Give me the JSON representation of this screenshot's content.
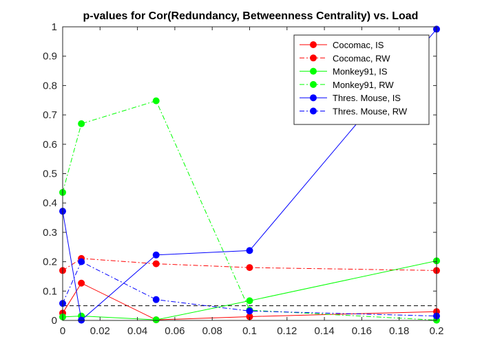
{
  "chart_data": {
    "type": "line",
    "title": "p-values for Cor(Redundancy, Betweenness Centrality) vs. Load",
    "xlabel": "",
    "ylabel": "",
    "xlim": [
      0,
      0.2
    ],
    "ylim": [
      0,
      1
    ],
    "xticks": [
      "0",
      "0.02",
      "0.04",
      "0.06",
      "0.08",
      "0.1",
      "0.12",
      "0.14",
      "0.16",
      "0.18",
      "0.2"
    ],
    "yticks": [
      "0",
      "0.1",
      "0.2",
      "0.3",
      "0.4",
      "0.5",
      "0.6",
      "0.7",
      "0.8",
      "0.9",
      "1"
    ],
    "x": [
      0,
      0.01,
      0.05,
      0.1,
      0.2
    ],
    "grid": false,
    "legend_position": "top-right",
    "series": [
      {
        "name": "Cocomac, IS",
        "color": "#ff0000",
        "dash": "solid",
        "values": [
          0.025,
          0.127,
          0.002,
          0.013,
          0.03
        ]
      },
      {
        "name": "Cocomac, RW",
        "color": "#ff0000",
        "dash": "dashdot",
        "values": [
          0.17,
          0.211,
          0.193,
          0.18,
          0.17
        ]
      },
      {
        "name": "Monkey91, IS",
        "color": "#00ff00",
        "dash": "solid",
        "values": [
          0.012,
          0.015,
          0.002,
          0.067,
          0.203
        ]
      },
      {
        "name": "Monkey91, RW",
        "color": "#00ff00",
        "dash": "dashdot",
        "values": [
          0.436,
          0.67,
          0.748,
          0.035,
          0.001
        ]
      },
      {
        "name": "Thres. Mouse, IS",
        "color": "#0000ff",
        "dash": "solid",
        "values": [
          0.372,
          0.001,
          0.223,
          0.238,
          0.992
        ]
      },
      {
        "name": "Thres. Mouse, RW",
        "color": "#0000ff",
        "dash": "dashdot",
        "values": [
          0.058,
          0.2,
          0.071,
          0.032,
          0.015
        ]
      }
    ],
    "reference_line": {
      "y": 0.05,
      "color": "#000000",
      "dash": "dashed"
    }
  }
}
